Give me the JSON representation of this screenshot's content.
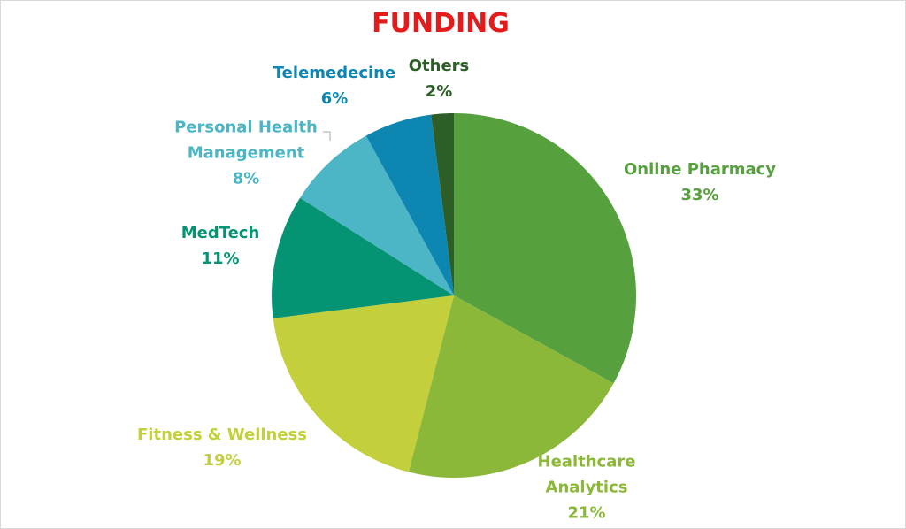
{
  "chart_data": {
    "type": "pie",
    "title": "FUNDING",
    "categories": [
      "Online Pharmacy",
      "Healthcare Analytics",
      "Fitness & Wellness",
      "MedTech",
      "Personal Health Management",
      "Telemedecine",
      "Others"
    ],
    "values": [
      33,
      21,
      19,
      11,
      8,
      6,
      2
    ],
    "value_labels": [
      "33%",
      "21%",
      "19%",
      "11%",
      "8%",
      "6%",
      "2%"
    ],
    "colors": [
      "#56a03e",
      "#8cb83a",
      "#c3d03c",
      "#059473",
      "#4cb5c6",
      "#0d87b1",
      "#2e5e27"
    ]
  }
}
